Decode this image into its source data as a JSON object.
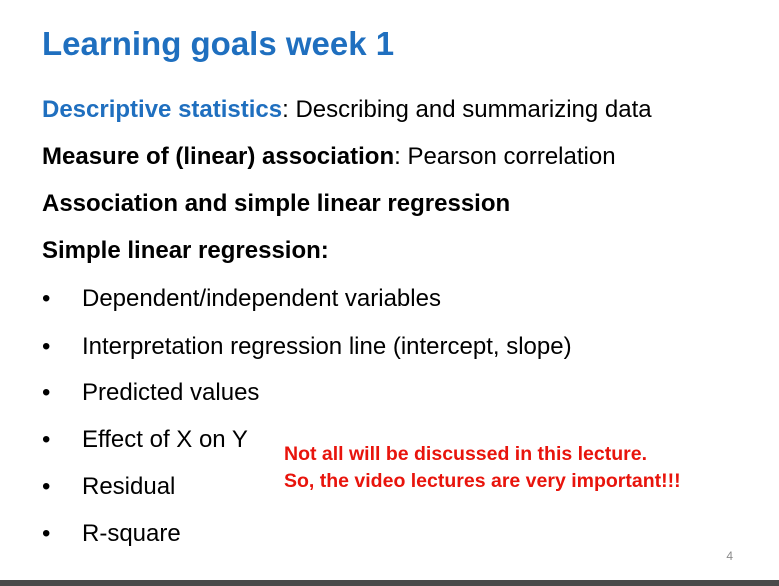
{
  "title": "Learning goals week 1",
  "line1": {
    "lead": "Descriptive  statistics",
    "rest": ": Describing and summarizing data"
  },
  "line2": {
    "lead": "Measure of (linear) association",
    "rest": ": Pearson correlation"
  },
  "line3": "Association and simple linear regression",
  "line4": "Simple linear regression:",
  "bullet_glyph": "•",
  "bullets": [
    "Dependent/independent variables",
    "Interpretation regression line (intercept, slope)",
    "Predicted values",
    "Effect of X on Y",
    "Residual",
    "R-square"
  ],
  "note": [
    "Not all will be discussed in this lecture.",
    "So, the video lectures are very important!!!"
  ],
  "page_number": "4",
  "colors": {
    "title_blue": "#1f6fbf",
    "note_red": "#e8140c"
  }
}
